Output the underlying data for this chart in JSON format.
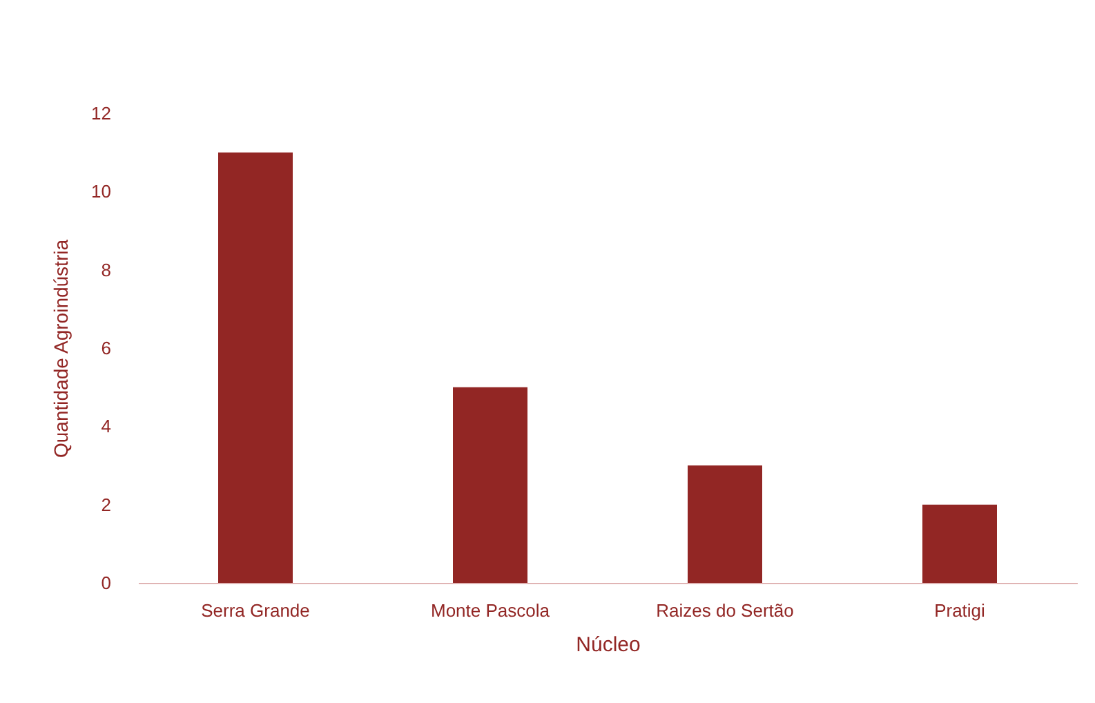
{
  "chart_data": {
    "type": "bar",
    "xlabel": "Núcleo",
    "ylabel": "Quantidade Agroindústria",
    "categories": [
      "Serra Grande",
      "Monte Pascola",
      "Raizes do Sertão",
      "Pratigi"
    ],
    "values": [
      11,
      5,
      3,
      2
    ],
    "color": "#922624",
    "ylim": [
      0,
      12
    ],
    "yticks": [
      0,
      2,
      4,
      6,
      8,
      10,
      12
    ],
    "grid": false
  }
}
